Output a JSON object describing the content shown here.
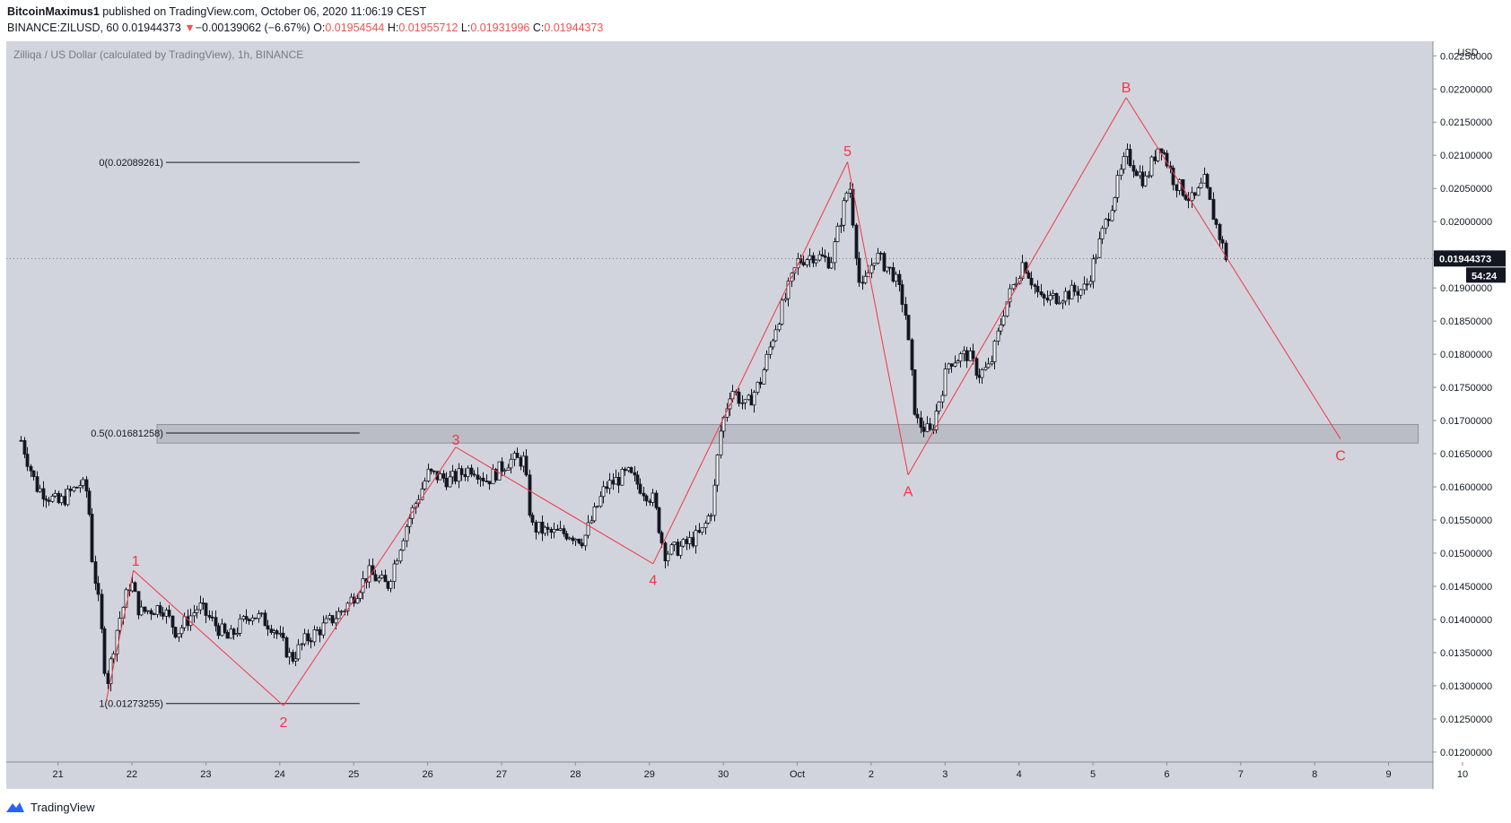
{
  "header": {
    "author": "BitcoinMaximus1",
    "published_text": "published on TradingView.com, October 06, 2020 11:06:19 CEST",
    "symbol": "BINANCE:ZILUSD, 60",
    "last": "0.01944373",
    "change_arrow": "▼",
    "change": "−0.00139062 (−6.67%)",
    "o_label": "O:",
    "o_value": "0.01954544",
    "h_label": "H:",
    "h_value": "0.01955712",
    "l_label": "L:",
    "l_value": "0.01931996",
    "c_label": "C:",
    "c_value": "0.01944373"
  },
  "footer": {
    "brand": "TradingView",
    "logo_icon": "tradingview-logo-icon"
  },
  "colors": {
    "background": "#d1d4dc",
    "candle": "#131722",
    "wave": "#f23645",
    "zone": "#b2b5be",
    "price_tag": "#131722"
  },
  "chart_data": {
    "type": "candlestick",
    "title": "Zilliqa / US Dollar (calculated by TradingView), 1h, BINANCE",
    "currency": "USD",
    "ylim": [
      0.01185,
      0.02272
    ],
    "xlim": [
      -0.2,
      19.1
    ],
    "y_ticks": [
      "0.01200000",
      "0.01250000",
      "0.01300000",
      "0.01350000",
      "0.01400000",
      "0.01450000",
      "0.01500000",
      "0.01550000",
      "0.01600000",
      "0.01650000",
      "0.01700000",
      "0.01750000",
      "0.01800000",
      "0.01850000",
      "0.01900000",
      "0.01950000",
      "0.02000000",
      "0.02050000",
      "0.02100000",
      "0.02150000",
      "0.02200000",
      "0.02250000"
    ],
    "x_ticks": [
      {
        "label": "21",
        "x": 0.5
      },
      {
        "label": "22",
        "x": 1.5
      },
      {
        "label": "23",
        "x": 2.5
      },
      {
        "label": "24",
        "x": 3.5
      },
      {
        "label": "25",
        "x": 4.5
      },
      {
        "label": "26",
        "x": 5.5
      },
      {
        "label": "27",
        "x": 6.5
      },
      {
        "label": "28",
        "x": 7.5
      },
      {
        "label": "29",
        "x": 8.5
      },
      {
        "label": "30",
        "x": 9.5
      },
      {
        "label": "Oct",
        "x": 10.5
      },
      {
        "label": "2",
        "x": 11.5
      },
      {
        "label": "3",
        "x": 12.5
      },
      {
        "label": "4",
        "x": 13.5
      },
      {
        "label": "5",
        "x": 14.5
      },
      {
        "label": "6",
        "x": 15.5
      },
      {
        "label": "7",
        "x": 16.5
      },
      {
        "label": "8",
        "x": 17.5
      },
      {
        "label": "9",
        "x": 18.5
      },
      {
        "label": "10",
        "x": 19.5
      }
    ],
    "price_path": [
      [
        0.0,
        0.0167
      ],
      [
        0.2,
        0.016
      ],
      [
        0.5,
        0.01575
      ],
      [
        0.8,
        0.01605
      ],
      [
        0.9,
        0.0159
      ],
      [
        0.95,
        0.015
      ],
      [
        1.05,
        0.0142
      ],
      [
        1.15,
        0.013
      ],
      [
        1.3,
        0.0139
      ],
      [
        1.48,
        0.0146
      ],
      [
        1.6,
        0.0141
      ],
      [
        1.9,
        0.0142
      ],
      [
        2.1,
        0.0138
      ],
      [
        2.4,
        0.0142
      ],
      [
        2.8,
        0.0137
      ],
      [
        3.1,
        0.0141
      ],
      [
        3.4,
        0.0139
      ],
      [
        3.65,
        0.0134
      ],
      [
        3.85,
        0.0137
      ],
      [
        4.1,
        0.0139
      ],
      [
        4.4,
        0.0142
      ],
      [
        4.7,
        0.0147
      ],
      [
        4.95,
        0.0145
      ],
      [
        5.2,
        0.0154
      ],
      [
        5.5,
        0.0162
      ],
      [
        5.8,
        0.0161
      ],
      [
        6.1,
        0.0163
      ],
      [
        6.3,
        0.0161
      ],
      [
        6.6,
        0.0164
      ],
      [
        6.8,
        0.0164
      ],
      [
        6.9,
        0.0154
      ],
      [
        7.15,
        0.0153
      ],
      [
        7.4,
        0.0153
      ],
      [
        7.6,
        0.0152
      ],
      [
        7.9,
        0.016
      ],
      [
        8.2,
        0.0162
      ],
      [
        8.55,
        0.0158
      ],
      [
        8.7,
        0.015
      ],
      [
        8.95,
        0.0151
      ],
      [
        9.2,
        0.0153
      ],
      [
        9.35,
        0.0157
      ],
      [
        9.45,
        0.0168
      ],
      [
        9.6,
        0.0175
      ],
      [
        9.8,
        0.0172
      ],
      [
        10.0,
        0.0176
      ],
      [
        10.2,
        0.0184
      ],
      [
        10.5,
        0.0194
      ],
      [
        10.7,
        0.0195
      ],
      [
        10.95,
        0.0194
      ],
      [
        11.2,
        0.0206
      ],
      [
        11.35,
        0.0189
      ],
      [
        11.55,
        0.0195
      ],
      [
        11.8,
        0.0192
      ],
      [
        11.95,
        0.0187
      ],
      [
        12.1,
        0.017
      ],
      [
        12.3,
        0.0168
      ],
      [
        12.55,
        0.0179
      ],
      [
        12.8,
        0.018
      ],
      [
        12.95,
        0.0177
      ],
      [
        13.1,
        0.0178
      ],
      [
        13.3,
        0.0187
      ],
      [
        13.55,
        0.0194
      ],
      [
        13.8,
        0.0188
      ],
      [
        14.1,
        0.0189
      ],
      [
        14.4,
        0.019
      ],
      [
        14.7,
        0.0201
      ],
      [
        14.95,
        0.021
      ],
      [
        15.2,
        0.0206
      ],
      [
        15.4,
        0.0212
      ],
      [
        15.6,
        0.0206
      ],
      [
        15.85,
        0.0203
      ],
      [
        16.0,
        0.0206
      ],
      [
        16.15,
        0.02
      ],
      [
        16.3,
        0.01944
      ]
    ],
    "waves": [
      {
        "label": "1",
        "points": [
          [
            1.15,
            0.01276
          ],
          [
            1.52,
            0.01474
          ]
        ],
        "label_at": [
          1.55,
          0.01489
        ]
      },
      {
        "label": "2",
        "points": [
          [
            1.52,
            0.01474
          ],
          [
            3.55,
            0.0127
          ]
        ],
        "label_at": [
          3.55,
          0.01246
        ]
      },
      {
        "label": "3",
        "points": [
          [
            3.55,
            0.0127
          ],
          [
            5.88,
            0.0166
          ]
        ],
        "label_at": [
          5.88,
          0.01672
        ]
      },
      {
        "label": "4",
        "points": [
          [
            5.88,
            0.0166
          ],
          [
            8.55,
            0.01484
          ]
        ],
        "label_at": [
          8.55,
          0.0146
        ]
      },
      {
        "label": "5",
        "points": [
          [
            8.55,
            0.01484
          ],
          [
            11.18,
            0.0209
          ]
        ],
        "label_at": [
          11.18,
          0.02107
        ]
      },
      {
        "label": "A",
        "points": [
          [
            11.18,
            0.0209
          ],
          [
            12.0,
            0.01618
          ]
        ],
        "label_at": [
          12.0,
          0.01594
        ]
      },
      {
        "label": "B",
        "points": [
          [
            12.0,
            0.01618
          ],
          [
            14.95,
            0.02187
          ]
        ],
        "label_at": [
          14.95,
          0.02203
        ]
      },
      {
        "label": "C",
        "points": [
          [
            14.95,
            0.02187
          ],
          [
            17.85,
            0.01672
          ]
        ],
        "label_at": [
          17.85,
          0.01648
        ]
      }
    ],
    "fib_levels": [
      {
        "label": "0(0.02089261)",
        "value": 0.02089261,
        "x_end": 4.58
      },
      {
        "label": "0.5(0.01681258)",
        "value": 0.01681258,
        "x_end": 4.58
      },
      {
        "label": "1(0.01273255)",
        "value": 0.01273255,
        "x_end": 4.58
      }
    ],
    "fib_label_x": 1.96,
    "zone": {
      "x_start": 1.84,
      "x_end": 18.9,
      "y_low": 0.01666,
      "y_high": 0.01694
    },
    "last_price": {
      "label": "0.01944373",
      "value": 0.01944373,
      "countdown": "54:24"
    },
    "grid": false
  }
}
